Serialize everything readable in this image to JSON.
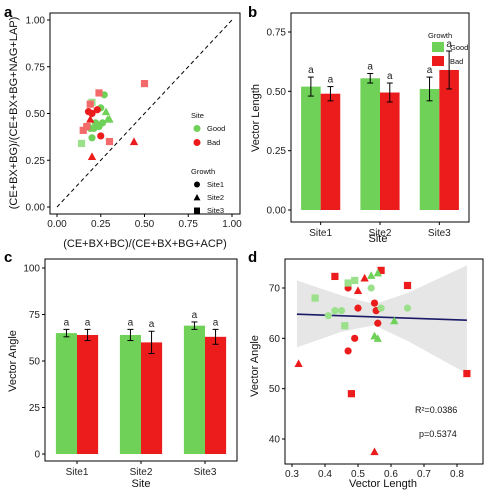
{
  "colors": {
    "good": "#6fd158",
    "bad": "#ec1c1c",
    "good_light": "#9be08a",
    "bad_light": "#f26a6a",
    "band": "#e3e3e3",
    "trend": "#1a1a66"
  },
  "chart_data": [
    {
      "panel": "a",
      "type": "scatter",
      "xlabel": "(CE+BX+BC)/(CE+BX+BG+ACP)",
      "ylabel": "(CE+BX+BG)/(CE+BX+BG+NAG+LAP)",
      "xlim": [
        0,
        1
      ],
      "ylim": [
        0,
        1
      ],
      "xticks": [
        "0.00",
        "0.25",
        "0.50",
        "0.75",
        "1.00"
      ],
      "yticks": [
        "0.00",
        "0.25",
        "0.50",
        "0.75",
        "1.00"
      ],
      "reference_line": "1:1 dashed",
      "legend_site_title": "Site",
      "legend_site": [
        "Good",
        "Bad"
      ],
      "legend_growth_title": "Growth",
      "legend_growth": [
        "Site1",
        "Site2",
        "Site3"
      ],
      "points": [
        {
          "x": 0.2,
          "y": 0.56,
          "growth": "Good",
          "shape": "square"
        },
        {
          "x": 0.25,
          "y": 0.53,
          "growth": "Good",
          "shape": "circle"
        },
        {
          "x": 0.27,
          "y": 0.6,
          "growth": "Good",
          "shape": "circle"
        },
        {
          "x": 0.28,
          "y": 0.51,
          "growth": "Good",
          "shape": "triangle"
        },
        {
          "x": 0.29,
          "y": 0.47,
          "growth": "Good",
          "shape": "triangle"
        },
        {
          "x": 0.26,
          "y": 0.45,
          "growth": "Good",
          "shape": "circle"
        },
        {
          "x": 0.22,
          "y": 0.45,
          "growth": "Good",
          "shape": "circle"
        },
        {
          "x": 0.24,
          "y": 0.43,
          "growth": "Good",
          "shape": "circle"
        },
        {
          "x": 0.3,
          "y": 0.47,
          "growth": "Good",
          "shape": "triangle"
        },
        {
          "x": 0.21,
          "y": 0.42,
          "growth": "Good",
          "shape": "circle"
        },
        {
          "x": 0.2,
          "y": 0.37,
          "growth": "Good",
          "shape": "circle"
        },
        {
          "x": 0.19,
          "y": 0.42,
          "growth": "Good",
          "shape": "circle"
        },
        {
          "x": 0.14,
          "y": 0.34,
          "growth": "Good",
          "shape": "square"
        },
        {
          "x": 0.18,
          "y": 0.43,
          "growth": "Good",
          "shape": "circle"
        },
        {
          "x": 0.15,
          "y": 0.41,
          "growth": "Bad",
          "shape": "square"
        },
        {
          "x": 0.17,
          "y": 0.43,
          "growth": "Bad",
          "shape": "square"
        },
        {
          "x": 0.19,
          "y": 0.47,
          "growth": "Bad",
          "shape": "triangle"
        },
        {
          "x": 0.18,
          "y": 0.51,
          "growth": "Bad",
          "shape": "circle"
        },
        {
          "x": 0.2,
          "y": 0.5,
          "growth": "Bad",
          "shape": "circle"
        },
        {
          "x": 0.19,
          "y": 0.55,
          "growth": "Bad",
          "shape": "square"
        },
        {
          "x": 0.24,
          "y": 0.61,
          "growth": "Bad",
          "shape": "square"
        },
        {
          "x": 0.23,
          "y": 0.52,
          "growth": "Bad",
          "shape": "circle"
        },
        {
          "x": 0.25,
          "y": 0.38,
          "growth": "Bad",
          "shape": "circle"
        },
        {
          "x": 0.2,
          "y": 0.27,
          "growth": "Bad",
          "shape": "triangle"
        },
        {
          "x": 0.3,
          "y": 0.35,
          "growth": "Bad",
          "shape": "square"
        },
        {
          "x": 0.44,
          "y": 0.35,
          "growth": "Bad",
          "shape": "triangle"
        },
        {
          "x": 0.5,
          "y": 0.66,
          "growth": "Bad",
          "shape": "square"
        }
      ]
    },
    {
      "panel": "b",
      "type": "bar",
      "categories": [
        "Site1",
        "Site2",
        "Site3"
      ],
      "xlabel": "Site",
      "ylabel": "Vector Length",
      "ylim": [
        0,
        0.75
      ],
      "yticks": [
        "0.00",
        "0.25",
        "0.50",
        "0.75"
      ],
      "legend_title": "Growth",
      "series": [
        {
          "name": "Good",
          "values": [
            0.52,
            0.555,
            0.51
          ],
          "errors": [
            0.04,
            0.02,
            0.05
          ]
        },
        {
          "name": "Bad",
          "values": [
            0.49,
            0.495,
            0.59
          ],
          "errors": [
            0.03,
            0.04,
            0.08
          ]
        }
      ],
      "labels": [
        [
          "a",
          "a"
        ],
        [
          "a",
          "a"
        ],
        [
          "a",
          "a"
        ]
      ]
    },
    {
      "panel": "c",
      "type": "bar",
      "categories": [
        "Site1",
        "Site2",
        "Site3"
      ],
      "xlabel": "Site",
      "ylabel": "Vector Angle",
      "ylim": [
        0,
        100
      ],
      "yticks": [
        "0",
        "25",
        "50",
        "75",
        "100"
      ],
      "series": [
        {
          "name": "Good",
          "values": [
            65,
            64,
            69
          ],
          "errors": [
            2,
            3,
            2
          ]
        },
        {
          "name": "Bad",
          "values": [
            64,
            60,
            63
          ],
          "errors": [
            3,
            6,
            4
          ]
        }
      ],
      "labels": [
        [
          "a",
          "a"
        ],
        [
          "a",
          "a"
        ],
        [
          "a",
          "a"
        ]
      ]
    },
    {
      "panel": "d",
      "type": "scatter",
      "xlabel": "Vector Length",
      "ylabel": "Vector Angle",
      "xlim": [
        0.3,
        0.85
      ],
      "ylim": [
        35,
        75
      ],
      "xticks": [
        "0.3",
        "0.4",
        "0.5",
        "0.6",
        "0.7",
        "0.8"
      ],
      "yticks": [
        "40",
        "50",
        "60",
        "70"
      ],
      "r2": "R²=0.0386",
      "p": "p=0.5374",
      "trend": [
        [
          0.315,
          64.8
        ],
        [
          0.83,
          63.6
        ]
      ],
      "band_upper": [
        [
          0.315,
          71.5
        ],
        [
          0.45,
          68.5
        ],
        [
          0.55,
          66.8
        ],
        [
          0.65,
          69.0
        ],
        [
          0.83,
          74.5
        ]
      ],
      "band_lower": [
        [
          0.315,
          58.2
        ],
        [
          0.45,
          61.3
        ],
        [
          0.55,
          62.6
        ],
        [
          0.65,
          59.5
        ],
        [
          0.83,
          53.0
        ]
      ],
      "points": [
        {
          "x": 0.43,
          "y": 72.3,
          "growth": "Bad",
          "shape": "square"
        },
        {
          "x": 0.52,
          "y": 72.0,
          "growth": "Bad",
          "shape": "triangle"
        },
        {
          "x": 0.57,
          "y": 73.5,
          "growth": "Bad",
          "shape": "square"
        },
        {
          "x": 0.5,
          "y": 69.5,
          "growth": "Bad",
          "shape": "triangle"
        },
        {
          "x": 0.47,
          "y": 70.0,
          "growth": "Bad",
          "shape": "circle"
        },
        {
          "x": 0.5,
          "y": 66.0,
          "growth": "Bad",
          "shape": "circle"
        },
        {
          "x": 0.55,
          "y": 67.0,
          "growth": "Bad",
          "shape": "circle"
        },
        {
          "x": 0.555,
          "y": 65.5,
          "growth": "Bad",
          "shape": "circle"
        },
        {
          "x": 0.56,
          "y": 63.0,
          "growth": "Bad",
          "shape": "circle"
        },
        {
          "x": 0.65,
          "y": 70.5,
          "growth": "Bad",
          "shape": "square"
        },
        {
          "x": 0.49,
          "y": 60.0,
          "growth": "Bad",
          "shape": "circle"
        },
        {
          "x": 0.47,
          "y": 57.5,
          "growth": "Bad",
          "shape": "circle"
        },
        {
          "x": 0.32,
          "y": 55.0,
          "growth": "Bad",
          "shape": "triangle"
        },
        {
          "x": 0.48,
          "y": 49.0,
          "growth": "Bad",
          "shape": "square"
        },
        {
          "x": 0.83,
          "y": 53.0,
          "growth": "Bad",
          "shape": "square"
        },
        {
          "x": 0.55,
          "y": 37.5,
          "growth": "Bad",
          "shape": "triangle"
        },
        {
          "x": 0.49,
          "y": 71.5,
          "growth": "Good",
          "shape": "square"
        },
        {
          "x": 0.54,
          "y": 72.5,
          "growth": "Good",
          "shape": "triangle"
        },
        {
          "x": 0.56,
          "y": 73.0,
          "growth": "Good",
          "shape": "triangle"
        },
        {
          "x": 0.54,
          "y": 70.0,
          "growth": "Good",
          "shape": "circle"
        },
        {
          "x": 0.37,
          "y": 68.0,
          "growth": "Good",
          "shape": "square"
        },
        {
          "x": 0.43,
          "y": 65.5,
          "growth": "Good",
          "shape": "circle"
        },
        {
          "x": 0.45,
          "y": 65.5,
          "growth": "Good",
          "shape": "circle"
        },
        {
          "x": 0.57,
          "y": 66.0,
          "growth": "Good",
          "shape": "circle"
        },
        {
          "x": 0.65,
          "y": 66.0,
          "growth": "Good",
          "shape": "circle"
        },
        {
          "x": 0.41,
          "y": 64.5,
          "growth": "Good",
          "shape": "circle"
        },
        {
          "x": 0.46,
          "y": 62.5,
          "growth": "Good",
          "shape": "square"
        },
        {
          "x": 0.61,
          "y": 63.5,
          "growth": "Good",
          "shape": "triangle"
        },
        {
          "x": 0.55,
          "y": 60.5,
          "growth": "Good",
          "shape": "triangle"
        },
        {
          "x": 0.56,
          "y": 60.0,
          "growth": "Good",
          "shape": "triangle"
        },
        {
          "x": 0.47,
          "y": 71.0,
          "growth": "Good",
          "shape": "square"
        }
      ]
    }
  ]
}
